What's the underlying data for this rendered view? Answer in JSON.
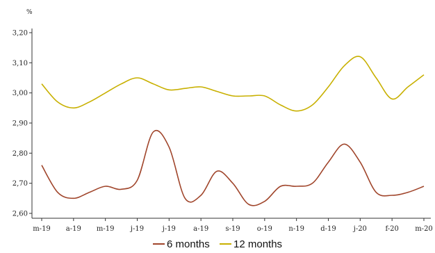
{
  "chart_data": {
    "type": "line",
    "ylabel": "%",
    "ylim": [
      2.6,
      3.2
    ],
    "yticks": [
      "2,60",
      "2,70",
      "2,80",
      "2,90",
      "3,00",
      "3,10",
      "3,20"
    ],
    "categories": [
      "m-19",
      "a-19",
      "m-19",
      "j-19",
      "j-19",
      "a-19",
      "s-19",
      "o-19",
      "n-19",
      "d-19",
      "j-20",
      "f-20",
      "m-20"
    ],
    "x": [
      0,
      0.5,
      1,
      1.5,
      2,
      2.5,
      3,
      3.5,
      4,
      4.5,
      5,
      5.5,
      6,
      6.5,
      7,
      7.5,
      8,
      8.5,
      9,
      9.5,
      10,
      10.5,
      11,
      11.5,
      12
    ],
    "series": [
      {
        "name": "6 months",
        "color": "#a0452b",
        "values": [
          2.76,
          2.67,
          2.65,
          2.67,
          2.69,
          2.68,
          2.71,
          2.87,
          2.82,
          2.65,
          2.66,
          2.74,
          2.7,
          2.63,
          2.64,
          2.69,
          2.69,
          2.7,
          2.77,
          2.83,
          2.77,
          2.67,
          2.66,
          2.67,
          2.69
        ]
      },
      {
        "name": "12 months",
        "color": "#c8b000",
        "values": [
          3.03,
          2.97,
          2.95,
          2.97,
          3.0,
          3.03,
          3.05,
          3.03,
          3.01,
          3.015,
          3.02,
          3.005,
          2.99,
          2.99,
          2.99,
          2.96,
          2.94,
          2.96,
          3.02,
          3.09,
          3.12,
          3.05,
          2.98,
          3.02,
          3.06
        ]
      }
    ],
    "legend": "bottom-center",
    "grid": false
  }
}
